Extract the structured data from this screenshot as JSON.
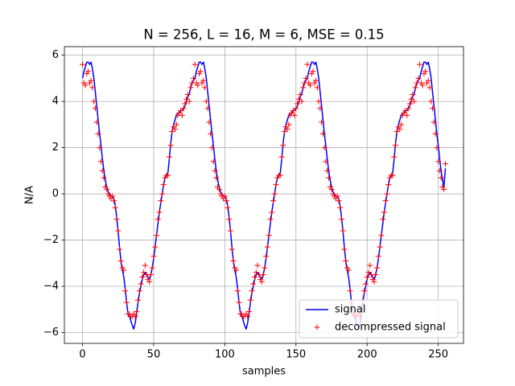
{
  "chart_data": {
    "type": "line",
    "title": "N = 256, L = 16, M = 6, MSE = 0.15",
    "xlabel": "samples",
    "ylabel": "N/A",
    "x": [
      0,
      1,
      2,
      3,
      4,
      5,
      6,
      7,
      8,
      9,
      10,
      11,
      12,
      13,
      14,
      15,
      16,
      17,
      18,
      19,
      20,
      21,
      22,
      23,
      24,
      25,
      26,
      27,
      28,
      29,
      30,
      31,
      32,
      33,
      34,
      35,
      36,
      37,
      38,
      39,
      40,
      41,
      42,
      43,
      44,
      45,
      46,
      47,
      48,
      49,
      50,
      51,
      52,
      53,
      54,
      55,
      56,
      57,
      58,
      59,
      60,
      61,
      62,
      63,
      64,
      65,
      66,
      67,
      68,
      69,
      70,
      71,
      72,
      73,
      74,
      75,
      76,
      77,
      78,
      79,
      80,
      81,
      82,
      83,
      84,
      85,
      86,
      87,
      88,
      89,
      90,
      91,
      92,
      93,
      94,
      95,
      96,
      97,
      98,
      99,
      100,
      101,
      102,
      103,
      104,
      105,
      106,
      107,
      108,
      109,
      110,
      111,
      112,
      113,
      114,
      115,
      116,
      117,
      118,
      119,
      120,
      121,
      122,
      123,
      124,
      125,
      126,
      127,
      128,
      129,
      130,
      131,
      132,
      133,
      134,
      135,
      136,
      137,
      138,
      139,
      140,
      141,
      142,
      143,
      144,
      145,
      146,
      147,
      148,
      149,
      150,
      151,
      152,
      153,
      154,
      155,
      156,
      157,
      158,
      159,
      160,
      161,
      162,
      163,
      164,
      165,
      166,
      167,
      168,
      169,
      170,
      171,
      172,
      173,
      174,
      175,
      176,
      177,
      178,
      179,
      180,
      181,
      182,
      183,
      184,
      185,
      186,
      187,
      188,
      189,
      190,
      191,
      192,
      193,
      194,
      195,
      196,
      197,
      198,
      199,
      200,
      201,
      202,
      203,
      204,
      205,
      206,
      207,
      208,
      209,
      210,
      211,
      212,
      213,
      214,
      215,
      216,
      217,
      218,
      219,
      220,
      221,
      222,
      223,
      224,
      225,
      226,
      227,
      228,
      229,
      230,
      231,
      232,
      233,
      234,
      235,
      236,
      237,
      238,
      239,
      240,
      241,
      242,
      243,
      244,
      245,
      246,
      247,
      248,
      249,
      250,
      251,
      252,
      253,
      254,
      255
    ],
    "series": [
      {
        "name": "signal",
        "color": "#0000ff",
        "style": "line",
        "values": [
          5.0,
          5.3,
          5.5,
          5.7,
          5.7,
          5.6,
          5.7,
          5.4,
          5.0,
          4.4,
          3.8,
          3.2,
          2.6,
          2.1,
          1.5,
          1.0,
          0.6,
          0.3,
          0.1,
          0.0,
          -0.1,
          -0.1,
          -0.2,
          -0.5,
          -1.0,
          -1.6,
          -2.3,
          -2.9,
          -3.3,
          -3.6,
          -4.1,
          -4.7,
          -5.2,
          -5.3,
          -5.5,
          -5.7,
          -5.85,
          -5.6,
          -5.2,
          -4.7,
          -4.3,
          -4.0,
          -3.7,
          -3.5,
          -3.4,
          -3.5,
          -3.6,
          -3.7,
          -3.5,
          -3.2,
          -2.8,
          -2.3,
          -1.8,
          -1.3,
          -0.8,
          -0.4,
          0.0,
          0.4,
          0.7,
          0.8,
          0.9,
          1.5,
          2.2,
          2.7,
          3.0,
          3.2,
          3.4,
          3.5,
          3.5,
          3.6,
          3.6,
          3.7,
          3.8,
          4.0,
          4.2,
          4.3,
          4.6,
          4.8,
          4.9,
          5.0,
          5.3,
          5.5,
          5.7,
          5.7,
          5.6,
          5.7,
          5.4,
          5.0,
          4.4,
          3.8,
          3.2,
          2.6,
          2.1,
          1.5,
          1.0,
          0.6,
          0.3,
          0.1,
          0.0,
          -0.1,
          -0.1,
          -0.2,
          -0.5,
          -1.0,
          -1.6,
          -2.3,
          -2.9,
          -3.3,
          -3.6,
          -4.1,
          -4.7,
          -5.2,
          -5.3,
          -5.5,
          -5.7,
          -5.85,
          -5.6,
          -5.2,
          -4.7,
          -4.3,
          -4.0,
          -3.7,
          -3.5,
          -3.4,
          -3.5,
          -3.6,
          -3.7,
          -3.5,
          -3.2,
          -2.8,
          -2.3,
          -1.8,
          -1.3,
          -0.8,
          -0.4,
          0.0,
          0.4,
          0.7,
          0.8,
          0.9,
          1.5,
          2.2,
          2.7,
          3.0,
          3.2,
          3.4,
          3.5,
          3.5,
          3.6,
          3.6,
          3.7,
          3.8,
          4.0,
          4.2,
          4.3,
          4.6,
          4.8,
          4.9,
          5.0,
          5.3,
          5.5,
          5.7,
          5.7,
          5.6,
          5.7,
          5.4,
          5.0,
          4.4,
          3.8,
          3.2,
          2.6,
          2.1,
          1.5,
          1.0,
          0.6,
          0.3,
          0.1,
          0.0,
          -0.1,
          -0.1,
          -0.2,
          -0.5,
          -1.0,
          -1.6,
          -2.3,
          -2.9,
          -3.3,
          -3.6,
          -4.1,
          -4.7,
          -5.2,
          -5.3,
          -5.5,
          -5.7,
          -5.85,
          -5.6,
          -5.2,
          -4.7,
          -4.3,
          -4.0,
          -3.7,
          -3.5,
          -3.4,
          -3.5,
          -3.6,
          -3.7,
          -3.5,
          -3.2,
          -2.8,
          -2.3,
          -1.8,
          -1.3,
          -0.8,
          -0.4,
          0.0,
          0.4,
          0.7,
          0.8,
          0.9,
          1.5,
          2.2,
          2.7,
          3.0,
          3.2,
          3.4,
          3.5,
          3.5,
          3.6,
          3.6,
          3.7,
          3.8,
          4.0,
          4.2,
          4.3,
          4.6,
          4.8,
          4.9,
          5.0,
          5.3,
          5.5,
          5.7,
          5.7,
          5.6,
          5.7,
          5.4,
          5.0,
          4.4,
          3.8,
          3.2,
          2.6,
          2.1,
          1.5,
          1.0,
          0.6,
          0.3,
          1.1
        ]
      },
      {
        "name": "decompressed signal",
        "color": "#ff0000",
        "style": "marker",
        "values": [
          5.6,
          4.8,
          4.7,
          5.2,
          5.3,
          4.8,
          4.9,
          4.6,
          4.0,
          3.7,
          3.1,
          2.6,
          2.0,
          1.4,
          1.0,
          0.7,
          0.3,
          0.2,
          0.0,
          -0.1,
          -0.2,
          -0.1,
          -0.3,
          -0.6,
          -1.1,
          -1.6,
          -2.4,
          -2.9,
          -3.2,
          -3.3,
          -4.2,
          -4.7,
          -5.2,
          -5.2,
          -5.3,
          -5.3,
          -5.2,
          -5.3,
          -5.1,
          -4.6,
          -4.2,
          -3.9,
          -3.6,
          -3.4,
          -3.1,
          -3.5,
          -3.7,
          -3.8,
          -3.5,
          -3.2,
          -2.7,
          -2.3,
          -1.8,
          -1.1,
          -0.8,
          -0.3,
          0.0,
          0.4,
          0.7,
          0.8,
          0.8,
          1.6,
          2.1,
          2.7,
          2.9,
          2.8,
          3.0,
          3.4,
          3.5,
          3.6,
          3.4,
          3.7,
          3.9,
          4.1,
          4.3,
          4.0,
          4.6,
          4.8,
          5.0,
          5.6,
          4.8,
          4.7,
          5.2,
          5.3,
          4.8,
          4.9,
          4.6,
          4.0,
          3.7,
          3.1,
          2.6,
          2.0,
          1.4,
          1.0,
          0.7,
          0.3,
          0.2,
          0.0,
          -0.1,
          -0.2,
          -0.1,
          -0.3,
          -0.6,
          -1.1,
          -1.6,
          -2.4,
          -2.9,
          -3.2,
          -3.3,
          -4.2,
          -4.7,
          -5.2,
          -5.2,
          -5.3,
          -5.3,
          -5.2,
          -5.3,
          -5.1,
          -4.6,
          -4.2,
          -3.9,
          -3.6,
          -3.4,
          -3.1,
          -3.5,
          -3.7,
          -3.8,
          -3.5,
          -3.2,
          -2.7,
          -2.3,
          -1.8,
          -1.1,
          -0.8,
          -0.3,
          0.0,
          0.4,
          0.7,
          0.8,
          0.8,
          1.6,
          2.1,
          2.7,
          2.9,
          2.8,
          3.0,
          3.4,
          3.5,
          3.6,
          3.4,
          3.7,
          3.9,
          4.1,
          4.3,
          4.0,
          4.6,
          4.8,
          5.0,
          5.6,
          4.8,
          4.7,
          5.2,
          5.3,
          4.8,
          4.9,
          4.6,
          4.0,
          3.7,
          3.1,
          2.6,
          2.0,
          1.4,
          1.0,
          0.7,
          0.3,
          0.2,
          0.0,
          -0.1,
          -0.2,
          -0.1,
          -0.3,
          -0.6,
          -1.1,
          -1.6,
          -2.4,
          -2.9,
          -3.2,
          -3.3,
          -4.2,
          -4.7,
          -5.2,
          -5.2,
          -5.3,
          -5.3,
          -5.2,
          -5.3,
          -5.1,
          -4.6,
          -4.2,
          -3.9,
          -3.6,
          -3.4,
          -3.1,
          -3.5,
          -3.7,
          -3.8,
          -3.5,
          -3.2,
          -2.7,
          -2.3,
          -1.8,
          -1.1,
          -0.8,
          -0.3,
          0.0,
          0.4,
          0.7,
          0.8,
          0.8,
          1.6,
          2.1,
          2.7,
          2.9,
          2.8,
          3.0,
          3.4,
          3.5,
          3.6,
          3.4,
          3.7,
          3.9,
          4.1,
          4.3,
          4.0,
          4.6,
          4.8,
          5.0,
          5.6,
          4.8,
          4.7,
          5.2,
          5.3,
          4.8,
          4.9,
          4.6,
          4.0,
          3.7,
          3.1,
          2.6,
          2.0,
          1.4,
          1.0,
          0.7,
          0.3,
          0.2,
          1.3
        ]
      }
    ],
    "xlim": [
      -12.75,
      267.75
    ],
    "ylim": [
      -6.47,
      6.37
    ],
    "xticks": [
      0,
      50,
      100,
      150,
      200,
      250
    ],
    "yticks": [
      {
        "value": -6,
        "label": "−6"
      },
      {
        "value": -4,
        "label": "−4"
      },
      {
        "value": -2,
        "label": "−2"
      },
      0,
      2,
      4,
      6
    ],
    "grid": true,
    "legend": "lower right"
  }
}
